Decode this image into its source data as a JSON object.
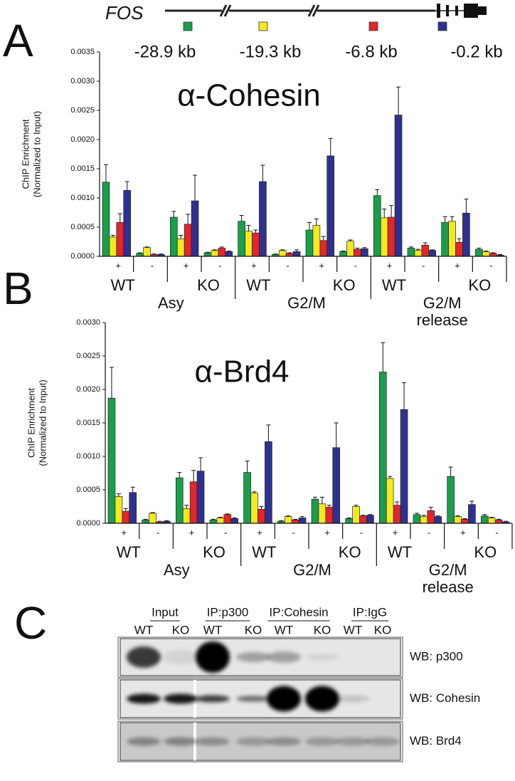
{
  "panels": [
    "A",
    "B",
    "C"
  ],
  "gene": {
    "name": "FOS"
  },
  "chart_data": [
    {
      "type": "bar",
      "title": "α-Cohesin",
      "ylabel": [
        "ChIP Enrichment",
        "(Normalized to Input)"
      ],
      "categories": [
        "+",
        "-",
        "+",
        "-",
        "+",
        "-",
        "+",
        "-",
        "+",
        "-",
        "+",
        "-"
      ],
      "genotypes": [
        "WT",
        "KO",
        "WT",
        "KO",
        "WT",
        "KO"
      ],
      "conditions": [
        "Asy",
        "G2/M",
        "G2/M release"
      ],
      "series": [
        {
          "name": "-28.9 kb",
          "color": "#1b9e4b",
          "values": [
            0.00127,
            5e-05,
            0.00067,
            6e-05,
            0.0006,
            3e-05,
            0.00045,
            8e-05,
            0.00104,
            0.00014,
            0.00058,
            0.00012
          ],
          "errors": [
            0.0003,
            1e-05,
            0.0001,
            1e-05,
            0.0001,
            1e-05,
            0.00013,
            1e-05,
            0.0001,
            2e-05,
            0.0001,
            2e-05
          ]
        },
        {
          "name": "-19.3 kb",
          "color": "#f2ea1f",
          "values": [
            0.00033,
            0.00015,
            0.0003,
            0.0001,
            0.00043,
            0.0001,
            0.00053,
            0.00026,
            0.00066,
            0.0001,
            0.0006,
            8e-05
          ],
          "errors": [
            3e-05,
            1e-05,
            6e-05,
            1e-05,
            0.0001,
            1e-05,
            0.00011,
            2e-05,
            0.00015,
            2e-05,
            8e-05,
            1e-05
          ]
        },
        {
          "name": "-6.8 kb",
          "color": "#e3262c",
          "values": [
            0.00058,
            3e-05,
            0.00055,
            0.00014,
            0.0004,
            5e-05,
            0.00027,
            0.00012,
            0.00067,
            0.00019,
            0.00024,
            5e-05
          ],
          "errors": [
            0.00015,
            1e-05,
            0.00017,
            2e-05,
            5e-05,
            1e-05,
            7e-05,
            2e-05,
            0.0002,
            4e-05,
            6e-05,
            1e-05
          ]
        },
        {
          "name": "-0.2 kb",
          "color": "#2e3192",
          "values": [
            0.00113,
            3e-05,
            0.00095,
            8e-05,
            0.00128,
            8e-05,
            0.00172,
            0.00013,
            0.00242,
            0.0001,
            0.00074,
            2e-05
          ],
          "errors": [
            0.00015,
            1e-05,
            0.00044,
            1e-05,
            0.00028,
            3e-05,
            0.0003,
            2e-05,
            0.00048,
            1e-05,
            0.00024,
            1e-05
          ]
        }
      ],
      "ylim": [
        0,
        0.0035
      ],
      "yticks": [
        {
          "value": 0,
          "label": "0.0000"
        },
        {
          "value": 0.0005,
          "label": "0.0005"
        },
        {
          "value": 0.001,
          "label": "0.0010"
        },
        {
          "value": 0.0015,
          "label": "0.0015"
        },
        {
          "value": 0.002,
          "label": "0.0020"
        },
        {
          "value": 0.0025,
          "label": "0.0025"
        },
        {
          "value": 0.003,
          "label": "0.0030"
        },
        {
          "value": 0.0035,
          "label": "0.0035"
        }
      ]
    },
    {
      "type": "bar",
      "title": "α-Brd4",
      "ylabel": [
        "ChIP Enrichment",
        "(Normalized to Input)"
      ],
      "categories": [
        "+",
        "-",
        "+",
        "-",
        "+",
        "-",
        "+",
        "-",
        "+",
        "-",
        "+",
        "-"
      ],
      "genotypes": [
        "WT",
        "KO",
        "WT",
        "KO",
        "WT",
        "KO"
      ],
      "conditions": [
        "Asy",
        "G2/M",
        "G2/M release"
      ],
      "series": [
        {
          "color": "#1b9e4b",
          "values": [
            0.00187,
            5e-05,
            0.00068,
            5e-05,
            0.00076,
            3e-05,
            0.00036,
            7e-05,
            0.00226,
            0.00013,
            0.0007,
            0.00011
          ],
          "errors": [
            0.00046,
            1e-05,
            8e-05,
            1e-05,
            0.00017,
            1e-05,
            3e-05,
            1e-05,
            0.00044,
            2e-05,
            0.00014,
            2e-05
          ]
        },
        {
          "color": "#f2ea1f",
          "values": [
            0.0004,
            0.00015,
            0.00022,
            8e-05,
            0.00045,
            0.0001,
            0.00029,
            0.00025,
            0.00067,
            0.0001,
            0.0001,
            8e-05
          ],
          "errors": [
            4e-05,
            1e-05,
            5e-05,
            1e-05,
            2e-05,
            1e-05,
            0.0001,
            2e-05,
            3e-05,
            2e-05,
            1e-05,
            1e-05
          ]
        },
        {
          "color": "#e3262c",
          "values": [
            0.00018,
            2e-05,
            0.00062,
            0.00013,
            0.00021,
            5e-05,
            0.00024,
            0.00011,
            0.00027,
            0.00019,
            6e-05,
            5e-05
          ],
          "errors": [
            4e-05,
            1e-05,
            0.00017,
            1e-05,
            4e-05,
            1e-05,
            3e-05,
            1e-05,
            5e-05,
            5e-05,
            1e-05,
            1e-05
          ]
        },
        {
          "color": "#2e3192",
          "values": [
            0.00046,
            3e-05,
            0.00078,
            7e-05,
            0.00122,
            8e-05,
            0.00113,
            0.00012,
            0.0017,
            0.0001,
            0.00028,
            2e-05
          ],
          "errors": [
            8e-05,
            1e-05,
            0.0002,
            1e-05,
            0.00025,
            2e-05,
            0.00037,
            1e-05,
            0.0004,
            1e-05,
            5e-05,
            1e-05
          ]
        }
      ],
      "ylim": [
        0,
        0.003
      ],
      "yticks": [
        {
          "value": 0,
          "label": "0.0000"
        },
        {
          "value": 0.0005,
          "label": "0.0005"
        },
        {
          "value": 0.001,
          "label": "0.0010"
        },
        {
          "value": 0.0015,
          "label": "0.0015"
        },
        {
          "value": 0.002,
          "label": "0.0020"
        },
        {
          "value": 0.0025,
          "label": "0.0025"
        },
        {
          "value": 0.003,
          "label": "0.0030"
        }
      ]
    }
  ],
  "blot": {
    "groups": [
      {
        "label": "Input",
        "lanes": [
          "WT",
          "KO"
        ]
      },
      {
        "label": "IP:p300",
        "lanes": [
          "WT",
          "KO"
        ]
      },
      {
        "label": "IP:Cohesin",
        "lanes": [
          "WT",
          "KO"
        ]
      },
      {
        "label": "IP:IgG",
        "lanes": [
          "WT",
          "KO"
        ]
      }
    ],
    "rows": [
      "WB: p300",
      "WB: Cohesin",
      "WB: Brd4"
    ]
  }
}
